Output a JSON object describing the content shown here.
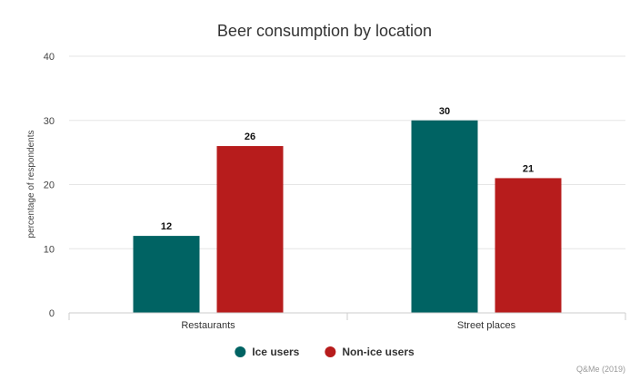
{
  "chart_data": {
    "type": "bar",
    "title": "Beer consumption by location",
    "xlabel": "",
    "ylabel": "percentage of respondents",
    "categories": [
      "Restaurants",
      "Street places"
    ],
    "series": [
      {
        "name": "Ice users",
        "values": [
          12,
          30
        ],
        "color": "#006363"
      },
      {
        "name": "Non-ice users",
        "values": [
          26,
          21
        ],
        "color": "#b71c1c"
      }
    ],
    "ylim": [
      0,
      40
    ],
    "yticks": [
      0,
      10,
      20,
      30,
      40
    ],
    "grid": true,
    "legend": "bottom-center",
    "credit": "Q&Me (2019)"
  }
}
